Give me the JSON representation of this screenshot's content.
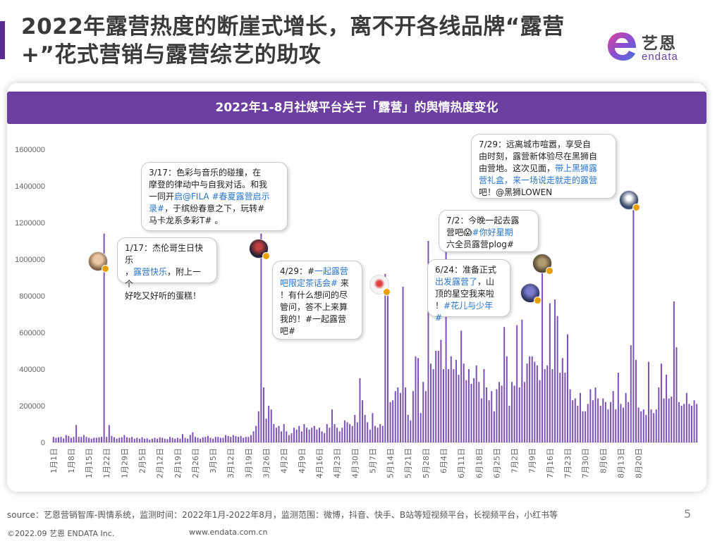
{
  "header": {
    "title": "2022年露营热度的断崖式增长，离不开各线品牌“露营+”花式营销与露营综艺的助攻",
    "logo_cn": "艺恩",
    "logo_en": "endata"
  },
  "chart_data": {
    "type": "bar",
    "title": "2022年1-8月社媒平台关于「露营」的舆情热度变化",
    "ylim": [
      0,
      1600000
    ],
    "yticks": [
      "0",
      "200000",
      "400000",
      "600000",
      "800000",
      "1000000",
      "1200000",
      "1400000",
      "1600000"
    ],
    "xtick_labels": [
      "1月1日",
      "1月8日",
      "1月15日",
      "1月22日",
      "1月29日",
      "2月5日",
      "2月12日",
      "2月19日",
      "2月26日",
      "3月5日",
      "3月12日",
      "3月19日",
      "3月26日",
      "4月2日",
      "4月9日",
      "4月16日",
      "4月23日",
      "4月30日",
      "5月7日",
      "5月14日",
      "5月21日",
      "5月28日",
      "6月4日",
      "6月11日",
      "6月18日",
      "6月25日",
      "7月2日",
      "7月9日",
      "7月16日",
      "7月23日",
      "7月30日",
      "8月6日",
      "8月13日",
      "8月20日"
    ],
    "start_date": "2022-01-01",
    "color": "#7b4fb3",
    "values": [
      30000,
      25000,
      28000,
      30000,
      22000,
      40000,
      35000,
      25000,
      30000,
      95000,
      30000,
      30000,
      40000,
      30000,
      25000,
      20000,
      25000,
      25000,
      28000,
      30000,
      1140000,
      30000,
      95000,
      35000,
      28000,
      20000,
      25000,
      28000,
      40000,
      28000,
      25000,
      30000,
      20000,
      25000,
      20000,
      28000,
      20000,
      22000,
      15000,
      20000,
      25000,
      20000,
      28000,
      25000,
      20000,
      18000,
      30000,
      25000,
      20000,
      25000,
      20000,
      45000,
      25000,
      20000,
      40000,
      55000,
      30000,
      25000,
      20000,
      28000,
      30000,
      35000,
      25000,
      20000,
      30000,
      30000,
      25000,
      25000,
      40000,
      35000,
      30000,
      40000,
      35000,
      30000,
      35000,
      25000,
      30000,
      30000,
      40000,
      60000,
      90000,
      170000,
      1140000,
      300000,
      130000,
      200000,
      180000,
      100000,
      80000,
      90000,
      60000,
      100000,
      60000,
      40000,
      50000,
      80000,
      70000,
      90000,
      60000,
      100000,
      80000,
      70000,
      80000,
      90000,
      70000,
      80000,
      60000,
      50000,
      100000,
      80000,
      180000,
      100000,
      80000,
      60000,
      80000,
      120000,
      110000,
      100000,
      90000,
      150000,
      110000,
      350000,
      230000,
      150000,
      110000,
      70000,
      160000,
      90000,
      80000,
      100000,
      90000,
      920000,
      880000,
      220000,
      230000,
      280000,
      300000,
      270000,
      850000,
      300000,
      150000,
      120000,
      280000,
      470000,
      460000,
      160000,
      330000,
      280000,
      1100000,
      430000,
      400000,
      500000,
      500000,
      560000,
      400000,
      1240000,
      400000,
      470000,
      400000,
      450000,
      370000,
      610000,
      430000,
      340000,
      400000,
      320000,
      350000,
      420000,
      330000,
      240000,
      400000,
      300000,
      230000,
      280000,
      170000,
      290000,
      330000,
      310000,
      630000,
      470000,
      200000,
      330000,
      310000,
      640000,
      300000,
      670000,
      330000,
      430000,
      470000,
      470000,
      440000,
      420000,
      340000,
      950000,
      400000,
      420000,
      760000,
      400000,
      780000,
      690000,
      380000,
      460000,
      380000,
      590000,
      290000,
      230000,
      240000,
      200000,
      270000,
      170000,
      170000,
      210000,
      290000,
      230000,
      300000,
      240000,
      200000,
      240000,
      220000,
      180000,
      220000,
      280000,
      180000,
      380000,
      210000,
      190000,
      270000,
      220000,
      530000,
      1270000,
      450000,
      190000,
      170000,
      180000,
      150000,
      440000,
      180000,
      160000,
      180000,
      300000,
      430000,
      240000,
      370000,
      240000,
      250000,
      770000,
      520000,
      220000,
      200000,
      210000,
      270000,
      210000,
      200000,
      230000,
      210000
    ]
  },
  "annotations": [
    {
      "date": "1/17",
      "text": "1/17：杰伦哥生日快乐",
      "l2_pre": "，",
      "l2_link": "露营快乐",
      "l2_post": "，附上一个",
      "l3": "好吃又好听的蛋糕！"
    },
    {
      "date": "3/17",
      "l1": "3/17：色彩与音乐的碰撞，在",
      "l2": "摩登的律动中与自我对话。和我",
      "l3_pre": "一同开",
      "l3_link": "启@FILA #春夏露营启示",
      "l4_link": "录#",
      "l4_post": "，于缤纷春意之下，玩转#",
      "l5": "马卡龙系多彩T#  。"
    },
    {
      "date": "4/29",
      "l1_pre": "4/29：#",
      "l1_link": "一起露营",
      "l2_link": "吧限定茶话会#",
      "l2_post": " 来",
      "l3": "！有什么想问的尽",
      "l4": "管问，答不上来算",
      "l5": "我的！#一起露营",
      "l6": "吧#"
    },
    {
      "date": "6/24",
      "l1": "6/24：准备正式",
      "l2_link": "出发露营了",
      "l2_post": "，山",
      "l3": "顶的星空我来啦",
      "l4_pre": "！",
      "l4_link": "#花儿与少年",
      "l5_link": "#"
    },
    {
      "date": "7/2",
      "l1": "7/2：今晚一起去露",
      "l2_pre": "营吧",
      "l2_emoji": "😱",
      "l2_link": "#你好星期",
      "l3": "六全员露营plog#"
    },
    {
      "date": "7/29",
      "l1": "7/29：远离城市喧嚣，享受自",
      "l2": "由时刻，露营新体验尽在黑狮自",
      "l3_pre": "由营地。这次见面，",
      "l3_link": "带上黑狮露",
      "l4_link": "营礼盒，来一场说走就走的露营",
      "l5": "吧！@黑狮LOWEN"
    }
  ],
  "footer": {
    "source": "source：艺恩营销智库-舆情系统，监测时间：2022年1月-2022年8月，监测范围：微博，抖音、快手、B站等短视频平台，长视频平台，小红书等",
    "copyright": "©2022.09 艺恩 ENDATA Inc.",
    "url": "www.endata.com.cn",
    "page": "5"
  }
}
